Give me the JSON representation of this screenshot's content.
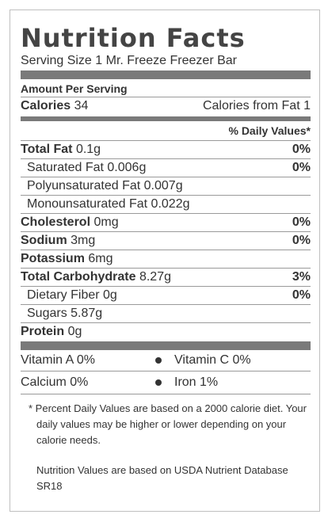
{
  "title": "Nutrition Facts",
  "serving_size": "Serving Size 1 Mr. Freeze Freezer Bar",
  "amount_per_serving": "Amount Per Serving",
  "calories": {
    "label": "Calories",
    "value": "34"
  },
  "calories_from_fat": {
    "label": "Calories from Fat",
    "value": "1"
  },
  "daily_values_header": "% Daily Values*",
  "nutrients": [
    {
      "label": "Total Fat",
      "amount": "0.1g",
      "dv": "0%"
    },
    {
      "label": "Saturated Fat",
      "amount": "0.006g",
      "dv": "0%"
    },
    {
      "label": "Polyunsaturated Fat",
      "amount": "0.007g",
      "dv": ""
    },
    {
      "label": "Monounsaturated Fat",
      "amount": "0.022g",
      "dv": ""
    },
    {
      "label": "Cholesterol",
      "amount": "0mg",
      "dv": "0%"
    },
    {
      "label": "Sodium",
      "amount": "3mg",
      "dv": "0%"
    },
    {
      "label": "Potassium",
      "amount": "6mg",
      "dv": ""
    },
    {
      "label": "Total Carbohydrate",
      "amount": "8.27g",
      "dv": "3%"
    },
    {
      "label": "Dietary Fiber",
      "amount": "0g",
      "dv": "0%"
    },
    {
      "label": "Sugars",
      "amount": "5.87g",
      "dv": ""
    },
    {
      "label": "Protein",
      "amount": "0g",
      "dv": ""
    }
  ],
  "vitamins": [
    {
      "label": "Vitamin A",
      "value": "0%"
    },
    {
      "label": "Vitamin C",
      "value": "0%"
    },
    {
      "label": "Calcium",
      "value": "0%"
    },
    {
      "label": "Iron",
      "value": "1%"
    }
  ],
  "footnote": "* Percent Daily Values are based on a 2000 calorie diet. Your daily values may be higher or lower depending on your calorie needs.",
  "source_note": "Nutrition Values are based on USDA Nutrient Database SR18",
  "colors": {
    "bar": "#7a7a7a",
    "border": "#bfbfbf",
    "text": "#333333"
  }
}
